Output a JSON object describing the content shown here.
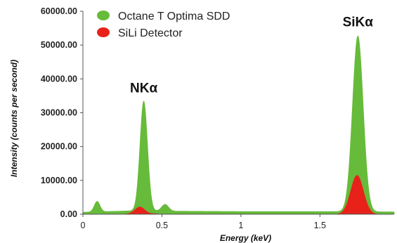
{
  "chart_data": {
    "type": "area",
    "xlabel": "Energy (keV)",
    "ylabel": "Intensity (counts per second)",
    "xlim": [
      0,
      1.97
    ],
    "ylim": [
      0,
      60000
    ],
    "x_ticks": [
      {
        "value": 0,
        "label": "0"
      },
      {
        "value": 0.5,
        "label": "0.5"
      },
      {
        "value": 1,
        "label": "1"
      },
      {
        "value": 1.5,
        "label": "1.5"
      }
    ],
    "y_ticks": [
      {
        "value": 0,
        "label": "0.00"
      },
      {
        "value": 10000,
        "label": "10000.00"
      },
      {
        "value": 20000,
        "label": "20000.00"
      },
      {
        "value": 30000,
        "label": "30000.00"
      },
      {
        "value": 40000,
        "label": "40000.00"
      },
      {
        "value": 50000,
        "label": "50000.00"
      },
      {
        "value": 60000,
        "label": "60000.00"
      }
    ],
    "grid": false,
    "legend_position": "top-left",
    "series": [
      {
        "name": "Octane T  Optima SDD",
        "color": "#66bb3a",
        "peaks": [
          {
            "center": 0.09,
            "height": 3100,
            "sigma": 0.018
          },
          {
            "center": 0.385,
            "height": 32500,
            "sigma": 0.024
          },
          {
            "center": 0.52,
            "height": 2000,
            "sigma": 0.022
          },
          {
            "center": 1.74,
            "height": 52000,
            "sigma": 0.034
          }
        ],
        "baseline": [
          {
            "x": 0.0,
            "y": 600
          },
          {
            "x": 0.15,
            "y": 800
          },
          {
            "x": 0.3,
            "y": 1000
          },
          {
            "x": 0.6,
            "y": 900
          },
          {
            "x": 1.0,
            "y": 800
          },
          {
            "x": 1.5,
            "y": 800
          },
          {
            "x": 1.97,
            "y": 700
          }
        ]
      },
      {
        "name": "SiLi Detector",
        "color": "#e8221a",
        "peaks": [
          {
            "center": 0.36,
            "height": 2000,
            "sigma": 0.03
          },
          {
            "center": 1.735,
            "height": 11500,
            "sigma": 0.04
          }
        ],
        "baseline": [
          {
            "x": 0.0,
            "y": 0
          },
          {
            "x": 0.25,
            "y": 0
          },
          {
            "x": 0.3,
            "y": 150
          },
          {
            "x": 0.45,
            "y": 150
          },
          {
            "x": 0.5,
            "y": 0
          },
          {
            "x": 1.5,
            "y": 0
          },
          {
            "x": 1.97,
            "y": 0
          }
        ]
      }
    ],
    "annotations": [
      {
        "text": "NKα",
        "x": 0.385,
        "y": 36000
      },
      {
        "text": "SiKα",
        "x": 1.74,
        "y": 55500
      }
    ]
  }
}
